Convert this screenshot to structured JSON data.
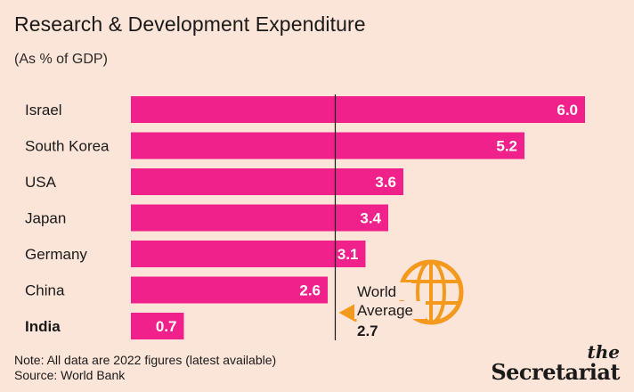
{
  "title": "Research & Development Expenditure",
  "subtitle": "(As % of GDP)",
  "notes": {
    "line1": "Note: All data are 2022 figures (latest available)",
    "line2": "Source: World Bank"
  },
  "brand": {
    "the": "the",
    "name": "Secretariat"
  },
  "colors": {
    "bar": "#f0218b",
    "background": "#fbe4d8",
    "globe": "#f39a1e",
    "text": "#1a1a1a"
  },
  "chart_data": {
    "type": "bar",
    "orientation": "horizontal",
    "title": "Research & Development Expenditure",
    "subtitle": "(As % of GDP)",
    "categories": [
      "Israel",
      "South Korea",
      "USA",
      "Japan",
      "Germany",
      "China",
      "India"
    ],
    "values": [
      6.0,
      5.2,
      3.6,
      3.4,
      3.1,
      2.6,
      0.7
    ],
    "value_labels": [
      "6.0",
      "5.2",
      "3.6",
      "3.4",
      "3.1",
      "2.6",
      "0.7"
    ],
    "highlight_category": "India",
    "xlim": [
      0,
      6.0
    ],
    "reference_line": {
      "label_line1": "World",
      "label_line2": "Average",
      "value": 2.7,
      "value_label": "2.7"
    },
    "grid": false,
    "legend": "none"
  }
}
